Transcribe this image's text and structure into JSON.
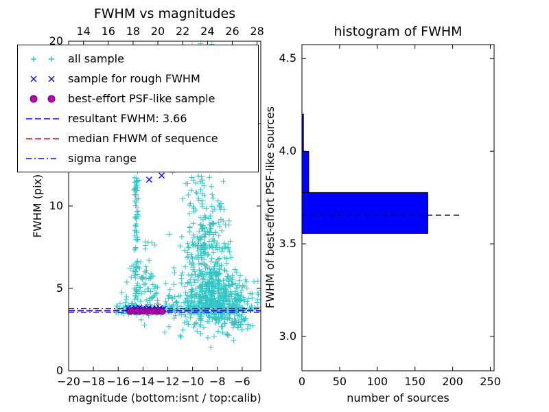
{
  "figure": {
    "background": "#ffffff"
  },
  "chart_data": [
    {
      "type": "scatter",
      "title": "FWHM vs magnitudes",
      "xlabel": "magnitude (bottom:isnt / top:calib)",
      "ylabel": "FWHM (pix)",
      "xlim": [
        -20,
        -4.5
      ],
      "ylim": [
        0,
        20
      ],
      "top_axis_offset": 32.8,
      "xticks_bottom": [
        {
          "v": -20,
          "label": "−20"
        },
        {
          "v": -18,
          "label": "−18"
        },
        {
          "v": -16,
          "label": "−16"
        },
        {
          "v": -14,
          "label": "−14"
        },
        {
          "v": -12,
          "label": "−12"
        },
        {
          "v": -10,
          "label": "−10"
        },
        {
          "v": -8,
          "label": "−8"
        },
        {
          "v": -6,
          "label": "−6"
        }
      ],
      "xticks_top": [
        {
          "v": 14,
          "label": "14"
        },
        {
          "v": 16,
          "label": "16"
        },
        {
          "v": 18,
          "label": "18"
        },
        {
          "v": 20,
          "label": "20"
        },
        {
          "v": 22,
          "label": "22"
        },
        {
          "v": 24,
          "label": "24"
        },
        {
          "v": 26,
          "label": "26"
        },
        {
          "v": 28,
          "label": "28"
        }
      ],
      "yticks": [
        {
          "v": 0,
          "label": "0"
        },
        {
          "v": 5,
          "label": "5"
        },
        {
          "v": 10,
          "label": "10"
        },
        {
          "v": 15,
          "label": "15"
        },
        {
          "v": 20,
          "label": "20"
        }
      ],
      "colors": {
        "all_sample": "#2fc5c5",
        "rough": "#0000ff",
        "psf_fill": "#bf00bf",
        "psf_edge": "#6a006a"
      },
      "legend": [
        {
          "label": "all sample",
          "type": "marker",
          "marker": "plus",
          "color": "#2fc5c5"
        },
        {
          "label": "sample for rough FWHM",
          "type": "marker",
          "marker": "x",
          "color": "#0000ff"
        },
        {
          "label": "best-effort PSF-like sample",
          "type": "marker",
          "marker": "circle",
          "color": "#bf00bf"
        },
        {
          "label": "resultant FWHM: 3.66",
          "type": "line",
          "style": "dashed",
          "color": "#0000ff"
        },
        {
          "label": "median FHWM of sequence",
          "type": "line",
          "style": "dashed",
          "color": "#ff0000"
        },
        {
          "label": "sigma range",
          "type": "line",
          "style": "dashdot",
          "color": "#0000ff"
        }
      ],
      "resultant_fwhm": 3.66,
      "lines": [
        {
          "name": "sigma-low",
          "value": 3.55,
          "color": "#0000ff",
          "style": "dashdot"
        },
        {
          "name": "sigma-high",
          "value": 3.77,
          "color": "#0000ff",
          "style": "dashdot"
        },
        {
          "name": "median",
          "value": 3.63,
          "color": "#ff0000",
          "style": "dashed"
        },
        {
          "name": "resultant",
          "value": 3.66,
          "color": "#0000ff",
          "style": "dashed"
        }
      ],
      "clusters": [
        {
          "n": 500,
          "x": {
            "dist": "gauss",
            "mu": -8.0,
            "sd": 1.5
          },
          "y": {
            "dist": "gauss",
            "mu": 4.2,
            "sd": 0.75
          }
        },
        {
          "n": 260,
          "x": {
            "dist": "gauss",
            "mu": -8.8,
            "sd": 1.05
          },
          "y": {
            "dist": "gauss",
            "mu": 6.8,
            "sd": 1.6
          }
        },
        {
          "n": 230,
          "x": {
            "dist": "gauss",
            "mu": -8.9,
            "sd": 0.85
          },
          "y": {
            "dist": "gauss",
            "mu": 13.5,
            "sd": 3.3
          }
        },
        {
          "n": 150,
          "x": {
            "dist": "uniform",
            "min": -16.2,
            "max": -5.8
          },
          "y": {
            "dist": "gauss",
            "mu": 3.72,
            "sd": 0.16
          }
        },
        {
          "n": 70,
          "x": {
            "dist": "gauss",
            "mu": -14.55,
            "sd": 0.1
          },
          "y": {
            "dist": "uniform",
            "min": 3.9,
            "max": 12.3
          }
        },
        {
          "n": 55,
          "x": {
            "dist": "gauss",
            "mu": -13.9,
            "sd": 0.55
          },
          "y": {
            "dist": "gauss",
            "mu": 5.6,
            "sd": 1.3
          }
        },
        {
          "n": 25,
          "x": {
            "dist": "gauss",
            "mu": -6.6,
            "sd": 0.55
          },
          "y": {
            "dist": "gauss",
            "mu": 2.95,
            "sd": 0.22
          }
        },
        {
          "n": 30,
          "x": {
            "dist": "gauss",
            "mu": -12.5,
            "sd": 0.9
          },
          "y": {
            "dist": "gauss",
            "mu": 4.6,
            "sd": 0.7
          }
        },
        {
          "n": 12,
          "x": {
            "dist": "gauss",
            "mu": -15.5,
            "sd": 0.5
          },
          "y": {
            "dist": "gauss",
            "mu": 4.1,
            "sd": 0.5
          }
        },
        {
          "n": 6,
          "x": {
            "dist": "gauss",
            "mu": -14.4,
            "sd": 0.3
          },
          "y": {
            "dist": "uniform",
            "min": 9,
            "max": 12
          }
        }
      ],
      "rough_sample": [
        [
          -15.2,
          3.8
        ],
        [
          -15.05,
          3.7
        ],
        [
          -14.9,
          3.78
        ],
        [
          -14.75,
          3.65
        ],
        [
          -14.6,
          3.8
        ],
        [
          -14.45,
          3.7
        ],
        [
          -14.3,
          3.84
        ],
        [
          -14.15,
          3.68
        ],
        [
          -14.0,
          3.77
        ],
        [
          -13.85,
          3.64
        ],
        [
          -13.7,
          3.74
        ],
        [
          -13.55,
          3.8
        ],
        [
          -13.4,
          3.68
        ],
        [
          -13.25,
          3.76
        ],
        [
          -13.1,
          3.66
        ],
        [
          -12.95,
          3.78
        ],
        [
          -12.8,
          3.71
        ],
        [
          -12.65,
          3.8
        ],
        [
          -12.5,
          3.69
        ],
        [
          -12.35,
          3.75
        ],
        [
          -13.5,
          11.6
        ],
        [
          -12.5,
          11.85
        ]
      ],
      "psf_sample": [
        [
          -15.05,
          3.6
        ],
        [
          -14.85,
          3.64
        ],
        [
          -14.65,
          3.61
        ],
        [
          -14.45,
          3.63
        ],
        [
          -14.25,
          3.6
        ],
        [
          -14.05,
          3.64
        ],
        [
          -13.85,
          3.62
        ],
        [
          -13.65,
          3.6
        ],
        [
          -13.45,
          3.64
        ],
        [
          -13.25,
          3.61
        ],
        [
          -13.05,
          3.63
        ],
        [
          -12.85,
          3.6
        ],
        [
          -12.65,
          3.63
        ],
        [
          -12.45,
          3.61
        ]
      ]
    },
    {
      "type": "histogram-horizontal",
      "title": "histogram of FWHM",
      "xlabel": "number of sources",
      "ylabel": "FWHM of best-effort PSF-like sources",
      "xlim": [
        0,
        255
      ],
      "ylim": [
        2.815,
        4.575
      ],
      "xticks": [
        {
          "v": 0,
          "label": "0"
        },
        {
          "v": 50,
          "label": "50"
        },
        {
          "v": 100,
          "label": "100"
        },
        {
          "v": 150,
          "label": "150"
        },
        {
          "v": 200,
          "label": "200"
        },
        {
          "v": 250,
          "label": "250"
        }
      ],
      "yticks": [
        {
          "v": 3.0,
          "label": "3.0"
        },
        {
          "v": 3.5,
          "label": "3.5"
        },
        {
          "v": 4.0,
          "label": "4.0"
        },
        {
          "v": 4.5,
          "label": "4.5"
        }
      ],
      "bar_color": "#0000ff",
      "bins": [
        {
          "y0": 3.555,
          "y1": 3.777,
          "count": 167
        },
        {
          "y0": 3.777,
          "y1": 3.999,
          "count": 9
        },
        {
          "y0": 3.999,
          "y1": 4.2,
          "count": 2
        }
      ],
      "median_line": {
        "value": 3.655,
        "x_end": 210,
        "style": "dashed",
        "color": "#000000"
      }
    }
  ]
}
